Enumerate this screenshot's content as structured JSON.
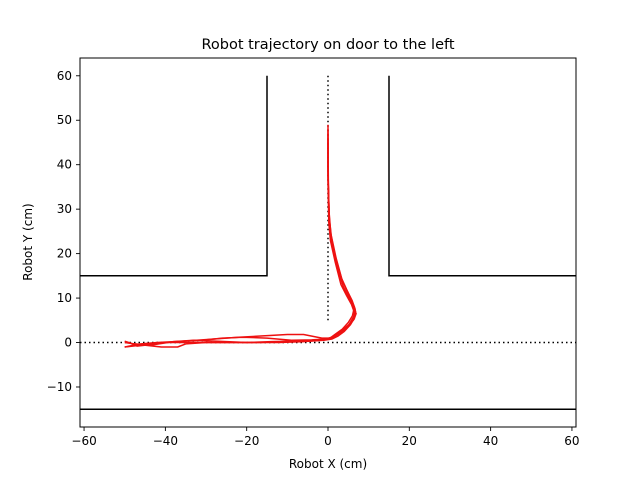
{
  "chart_data": {
    "type": "line",
    "title": "Robot trajectory on door to the left",
    "xlabel": "Robot X (cm)",
    "ylabel": "Robot Y (cm)",
    "xlim": [
      -61,
      61
    ],
    "ylim": [
      64,
      -19
    ],
    "y_inverted": true,
    "grid": false,
    "xticks": [
      -60,
      -40,
      -20,
      0,
      20,
      40,
      60
    ],
    "xtick_labels": [
      "−60",
      "−40",
      "−20",
      "0",
      "20",
      "40",
      "60"
    ],
    "yticks": [
      -10,
      0,
      10,
      20,
      30,
      40,
      50,
      60
    ],
    "ytick_labels": [
      "−10",
      "0",
      "10",
      "20",
      "30",
      "40",
      "50",
      "60"
    ],
    "walls": {
      "color": "#000000",
      "lines": [
        {
          "x": [
            -61,
            61
          ],
          "y": [
            -15,
            -15
          ]
        },
        {
          "x": [
            -61,
            -15,
            -15
          ],
          "y": [
            15,
            15,
            60
          ]
        },
        {
          "x": [
            15,
            15,
            61
          ],
          "y": [
            60,
            15,
            15
          ]
        }
      ]
    },
    "guides": {
      "color": "#000000",
      "lines": [
        {
          "x": [
            -61,
            61
          ],
          "y": [
            0,
            0
          ]
        },
        {
          "x": [
            0,
            0
          ],
          "y": [
            5,
            60
          ]
        }
      ]
    },
    "trajectory_color": "#ee1111",
    "series": [
      {
        "x": [
          0,
          0,
          0.2,
          0.5,
          1.5,
          3,
          4.5,
          5.5,
          6.5,
          6,
          5,
          3.5,
          2,
          0.5,
          -2,
          -6,
          -12,
          -18,
          -24,
          -32,
          -40,
          -50
        ],
        "y": [
          49,
          40,
          30,
          25,
          20,
          15,
          12,
          10,
          8,
          6,
          4.5,
          3,
          2,
          1,
          0.5,
          0.2,
          0,
          0,
          0,
          0,
          0,
          -1
        ]
      },
      {
        "x": [
          0,
          0,
          0.3,
          0.8,
          2,
          3.5,
          5,
          6,
          6.8,
          6.5,
          5.5,
          4,
          2.5,
          1,
          -1,
          -5,
          -11,
          -17,
          -23,
          -30,
          -35,
          -37,
          -41,
          -46,
          -50
        ],
        "y": [
          48,
          38,
          28,
          24,
          19,
          14,
          11,
          9,
          7,
          5.5,
          4,
          2.5,
          1.5,
          0.8,
          0.5,
          0.3,
          0.2,
          0,
          0,
          0,
          -0.3,
          -1,
          -1,
          -0.5,
          0
        ]
      },
      {
        "x": [
          0,
          0,
          0.2,
          0.6,
          1.8,
          3.2,
          4.6,
          5.8,
          6.6,
          6.2,
          5,
          3.6,
          2.2,
          0.8,
          -1.5,
          -6,
          -10,
          -16,
          -22,
          -28,
          -34,
          -40,
          -44,
          -47,
          -49
        ],
        "y": [
          47,
          36,
          27,
          23,
          18,
          13,
          10.5,
          8.5,
          6.5,
          5,
          3.8,
          2.8,
          1.8,
          1,
          1,
          1.8,
          1.8,
          1.5,
          1.2,
          0.8,
          0.4,
          0,
          -0.5,
          -0.8,
          0
        ]
      },
      {
        "x": [
          0,
          0.1,
          0.4,
          1,
          2.2,
          3.8,
          5.2,
          6.2,
          6.9,
          6.4,
          5.2,
          3.8,
          2.3,
          0.9,
          -0.5,
          -4,
          -9,
          -15,
          -21,
          -26,
          -31,
          -36,
          -42,
          -46,
          -50
        ],
        "y": [
          46,
          35,
          26,
          22,
          17,
          12.5,
          10,
          8,
          6.5,
          5.2,
          4,
          3,
          2,
          1.2,
          0.8,
          0.6,
          0.5,
          1,
          1.2,
          1,
          0.5,
          0.3,
          0,
          -0.3,
          -1
        ]
      },
      {
        "x": [
          0,
          0,
          0.3,
          0.7,
          1.7,
          3.3,
          4.8,
          5.9,
          6.7,
          6.3,
          5.3,
          3.9,
          2.4,
          1,
          -1,
          -5,
          -10,
          -14,
          -20,
          -27,
          -33,
          -38,
          -43,
          -48,
          -50
        ],
        "y": [
          45,
          37,
          29,
          24.5,
          19.5,
          14.5,
          11.5,
          9.5,
          7.5,
          5.8,
          4.2,
          2.8,
          1.8,
          1,
          0.6,
          0.4,
          0.3,
          0.2,
          0,
          0.3,
          0.5,
          0.2,
          -0.5,
          -0.3,
          0.3
        ]
      }
    ]
  }
}
